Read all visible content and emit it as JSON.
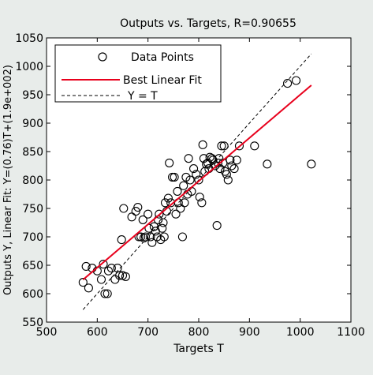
{
  "chart_data": {
    "type": "scatter",
    "title": "Outputs vs. Targets, R=0.90655",
    "xlabel": "Targets T",
    "ylabel": "Outputs Y,  Linear Fit: Y=(0.76)T+(1.9e+002)",
    "xlim": [
      500,
      1100
    ],
    "ylim": [
      550,
      1050
    ],
    "xticks": [
      500,
      600,
      700,
      800,
      900,
      1000,
      1100
    ],
    "yticks": [
      550,
      600,
      650,
      700,
      750,
      800,
      850,
      900,
      950,
      1000,
      1050
    ],
    "grid": false,
    "legend_position": "top-left",
    "legend": [
      {
        "label": "Data Points",
        "style": "circle"
      },
      {
        "label": "Best Linear Fit",
        "style": "line",
        "color": "#e8001c"
      },
      {
        "label": "Y = T",
        "style": "dashed",
        "color": "#000000"
      }
    ],
    "series": [
      {
        "name": "Data Points",
        "marker": "circle",
        "points": [
          [
            572,
            620
          ],
          [
            578,
            648
          ],
          [
            583,
            610
          ],
          [
            590,
            645
          ],
          [
            600,
            640
          ],
          [
            608,
            625
          ],
          [
            612,
            652
          ],
          [
            615,
            600
          ],
          [
            620,
            600
          ],
          [
            622,
            640
          ],
          [
            628,
            645
          ],
          [
            635,
            625
          ],
          [
            640,
            645
          ],
          [
            644,
            632
          ],
          [
            650,
            632
          ],
          [
            656,
            630
          ],
          [
            648,
            695
          ],
          [
            652,
            750
          ],
          [
            668,
            735
          ],
          [
            676,
            745
          ],
          [
            680,
            752
          ],
          [
            682,
            700
          ],
          [
            686,
            700
          ],
          [
            690,
            730
          ],
          [
            692,
            698
          ],
          [
            695,
            700
          ],
          [
            700,
            740
          ],
          [
            702,
            715
          ],
          [
            705,
            700
          ],
          [
            708,
            690
          ],
          [
            712,
            718
          ],
          [
            715,
            710
          ],
          [
            718,
            700
          ],
          [
            720,
            730
          ],
          [
            722,
            740
          ],
          [
            725,
            695
          ],
          [
            728,
            715
          ],
          [
            730,
            725
          ],
          [
            732,
            700
          ],
          [
            734,
            760
          ],
          [
            737,
            745
          ],
          [
            740,
            768
          ],
          [
            742,
            830
          ],
          [
            745,
            760
          ],
          [
            748,
            805
          ],
          [
            752,
            805
          ],
          [
            755,
            740
          ],
          [
            758,
            780
          ],
          [
            760,
            760
          ],
          [
            764,
            750
          ],
          [
            768,
            700
          ],
          [
            770,
            790
          ],
          [
            772,
            760
          ],
          [
            775,
            805
          ],
          [
            778,
            775
          ],
          [
            780,
            838
          ],
          [
            783,
            800
          ],
          [
            786,
            780
          ],
          [
            790,
            820
          ],
          [
            795,
            810
          ],
          [
            800,
            800
          ],
          [
            802,
            770
          ],
          [
            806,
            760
          ],
          [
            808,
            862
          ],
          [
            810,
            838
          ],
          [
            812,
            815
          ],
          [
            815,
            828
          ],
          [
            818,
            830
          ],
          [
            820,
            820
          ],
          [
            822,
            840
          ],
          [
            826,
            838
          ],
          [
            828,
            835
          ],
          [
            832,
            825
          ],
          [
            836,
            720
          ],
          [
            838,
            830
          ],
          [
            840,
            838
          ],
          [
            842,
            820
          ],
          [
            845,
            860
          ],
          [
            848,
            830
          ],
          [
            850,
            860
          ],
          [
            852,
            815
          ],
          [
            855,
            810
          ],
          [
            858,
            800
          ],
          [
            862,
            835
          ],
          [
            865,
            825
          ],
          [
            870,
            820
          ],
          [
            875,
            835
          ],
          [
            880,
            860
          ],
          [
            910,
            860
          ],
          [
            935,
            828
          ],
          [
            975,
            970
          ],
          [
            992,
            975
          ],
          [
            1022,
            828
          ]
        ]
      },
      {
        "name": "Best Linear Fit",
        "type": "line",
        "color": "#e8001c",
        "points": [
          [
            572,
            624.72
          ],
          [
            1022,
            966.72
          ]
        ]
      },
      {
        "name": "Y = T",
        "type": "line",
        "style": "dashed",
        "color": "#000000",
        "points": [
          [
            572,
            572
          ],
          [
            1022,
            1022
          ]
        ]
      }
    ]
  }
}
